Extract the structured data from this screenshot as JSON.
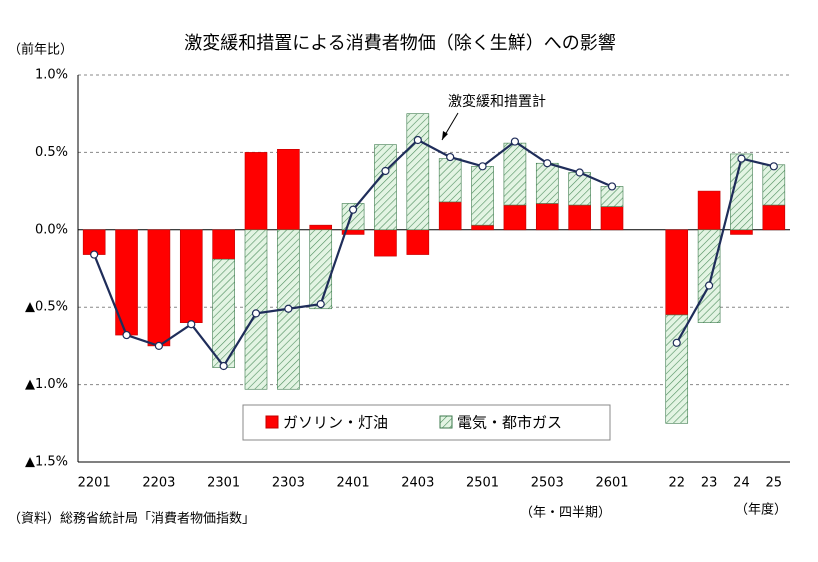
{
  "chart_data": {
    "type": "bar",
    "title": "激変緩和措置による消費者物価（除く生鮮）への影響",
    "ylabel": "（前年比）",
    "x_note": "（年・四半期）",
    "x_note2": "（年度）",
    "source": "（資料）総務省統計局「消費者物価指数」",
    "categories": [
      "2201",
      null,
      "2203",
      null,
      "2301",
      null,
      "2303",
      null,
      "2401",
      null,
      "2403",
      null,
      "2501",
      null,
      "2503",
      null,
      "2601",
      null,
      "22",
      "23",
      "24",
      "25"
    ],
    "series": [
      {
        "name": "ガソリン・灯油",
        "color": "#ff0000",
        "values": [
          -0.16,
          -0.68,
          -0.75,
          -0.6,
          -0.19,
          0.5,
          0.52,
          0.03,
          -0.03,
          -0.17,
          -0.16,
          0.18,
          0.03,
          0.16,
          0.17,
          0.16,
          0.15,
          null,
          -0.55,
          0.25,
          -0.03,
          0.16
        ]
      },
      {
        "name": "電気・都市ガス",
        "color": "#e3f4e3",
        "values": [
          0,
          0,
          0,
          0,
          -0.7,
          -1.03,
          -1.03,
          -0.51,
          0.17,
          0.55,
          0.75,
          0.28,
          0.38,
          0.4,
          0.26,
          0.21,
          0.13,
          null,
          -0.7,
          -0.6,
          0.49,
          0.26
        ]
      },
      {
        "name": "激変緩和措置計",
        "type": "line",
        "color": "#1f2d5a",
        "values": [
          -0.16,
          -0.68,
          -0.75,
          -0.61,
          -0.88,
          -0.54,
          -0.51,
          -0.48,
          0.13,
          0.38,
          0.58,
          0.47,
          0.41,
          0.57,
          0.43,
          0.37,
          0.28,
          null,
          -0.73,
          -0.36,
          0.46,
          0.41
        ]
      }
    ],
    "ylim": [
      -1.5,
      1.0
    ],
    "yticks": [
      {
        "value": -1.5,
        "label": "▲1.5%"
      },
      {
        "value": -1.0,
        "label": "▲1.0%"
      },
      {
        "value": -0.5,
        "label": "▲0.5%"
      },
      {
        "value": 0,
        "label": "0.0%"
      },
      {
        "value": 0.5,
        "label": "0.5%"
      },
      {
        "value": 1.0,
        "label": "1.0%"
      }
    ],
    "grid": true
  }
}
